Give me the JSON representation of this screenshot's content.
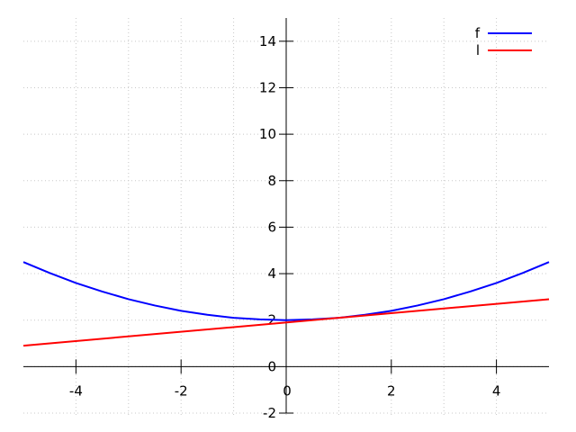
{
  "chart_data": {
    "type": "line",
    "xlim": [
      -5,
      5
    ],
    "ylim": [
      -2,
      15
    ],
    "grid": true,
    "legend_position": "top-right",
    "x_ticks": [
      {
        "value": -4,
        "label": "-4"
      },
      {
        "value": -2,
        "label": "-2"
      },
      {
        "value": 0,
        "label": "0"
      },
      {
        "value": 2,
        "label": "2"
      },
      {
        "value": 4,
        "label": "4"
      }
    ],
    "y_ticks": [
      {
        "value": -2,
        "label": "-2"
      },
      {
        "value": 0,
        "label": "0"
      },
      {
        "value": 2,
        "label": "2"
      },
      {
        "value": 4,
        "label": "4"
      },
      {
        "value": 6,
        "label": "6"
      },
      {
        "value": 8,
        "label": "8"
      },
      {
        "value": 10,
        "label": "10"
      },
      {
        "value": 12,
        "label": "12"
      },
      {
        "value": 14,
        "label": "14"
      }
    ],
    "series": [
      {
        "name": "f",
        "color": "#0000ff",
        "x": [
          -5,
          -4.5,
          -4,
          -3.5,
          -3,
          -2.5,
          -2,
          -1.5,
          -1,
          -0.5,
          0,
          0.5,
          1,
          1.5,
          2,
          2.5,
          3,
          3.5,
          4,
          4.5,
          5
        ],
        "y": [
          4.5,
          4.03,
          3.6,
          3.23,
          2.9,
          2.63,
          2.4,
          2.23,
          2.1,
          2.03,
          2.0,
          2.03,
          2.1,
          2.23,
          2.4,
          2.63,
          2.9,
          3.23,
          3.6,
          4.03,
          4.5
        ]
      },
      {
        "name": "l",
        "color": "#ff0000",
        "x": [
          -5,
          5
        ],
        "y": [
          0.9,
          2.9
        ]
      }
    ]
  }
}
